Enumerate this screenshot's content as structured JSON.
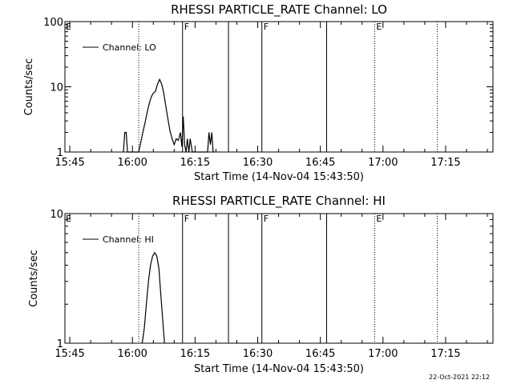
{
  "chart_data": [
    {
      "type": "line",
      "title": "RHESSI PARTICLE_RATE Channel: LO",
      "xlabel": "Start Time (14-Nov-04 15:43:50)",
      "ylabel": "Counts/sec",
      "yscale": "log",
      "ylim": [
        1,
        100
      ],
      "y_ticks": [
        1,
        10,
        100
      ],
      "xlim": [
        "15:43:50",
        "17:26:20"
      ],
      "x_ticks": [
        "15:45",
        "16:00",
        "16:15",
        "16:30",
        "16:45",
        "17:00",
        "17:15"
      ],
      "legend": {
        "placement": "top-left",
        "entries": [
          "Channel: LO"
        ]
      },
      "grid": false,
      "vertical_lines": [
        {
          "time": "16:01:30",
          "style": "dotted",
          "label": ""
        },
        {
          "time": "16:12:00",
          "style": "solid",
          "label": "F"
        },
        {
          "time": "16:23:00",
          "style": "solid",
          "label": ""
        },
        {
          "time": "16:31:00",
          "style": "solid",
          "label": "F"
        },
        {
          "time": "16:46:30",
          "style": "solid",
          "label": ""
        },
        {
          "time": "16:58:00",
          "style": "dotted",
          "label": "E"
        },
        {
          "time": "17:13:00",
          "style": "dotted",
          "label": ""
        }
      ],
      "corner_flag": "E",
      "series": [
        {
          "name": "Channel: LO",
          "x": [
            "15:57:50",
            "15:58:10",
            "15:58:30",
            "15:58:50",
            "16:01:30",
            "16:02:00",
            "16:02:30",
            "16:03:00",
            "16:03:30",
            "16:04:00",
            "16:04:30",
            "16:05:00",
            "16:05:30",
            "16:06:00",
            "16:06:30",
            "16:07:00",
            "16:07:30",
            "16:08:00",
            "16:08:30",
            "16:09:00",
            "16:09:30",
            "16:10:00",
            "16:10:30",
            "16:11:00",
            "16:11:30",
            "16:11:50",
            "16:12:10",
            "16:12:30",
            "16:12:50",
            "16:13:10",
            "16:13:30",
            "16:13:50",
            "16:14:20",
            "16:18:00",
            "16:18:20",
            "16:18:40",
            "16:19:00",
            "16:19:20",
            "16:19:40"
          ],
          "y": [
            1,
            2,
            2,
            1,
            1,
            1.4,
            2,
            2.8,
            4,
            5.5,
            7,
            8,
            8.5,
            11,
            13,
            11,
            8,
            5,
            3.2,
            2.1,
            1.6,
            1.3,
            1.6,
            1.5,
            2,
            1.2,
            3.5,
            1.3,
            1,
            1.6,
            1,
            1.6,
            1,
            1,
            2,
            1.3,
            2,
            1,
            1
          ]
        }
      ]
    },
    {
      "type": "line",
      "title": "RHESSI PARTICLE_RATE Channel: HI",
      "xlabel": "Start Time (14-Nov-04 15:43:50)",
      "ylabel": "Counts/sec",
      "yscale": "log",
      "ylim": [
        1,
        10
      ],
      "y_ticks": [
        1,
        10
      ],
      "xlim": [
        "15:43:50",
        "17:26:20"
      ],
      "x_ticks": [
        "15:45",
        "16:00",
        "16:15",
        "16:30",
        "16:45",
        "17:00",
        "17:15"
      ],
      "legend": {
        "placement": "top-left",
        "entries": [
          "Channel: HI"
        ]
      },
      "grid": false,
      "vertical_lines": [
        {
          "time": "16:01:30",
          "style": "dotted",
          "label": ""
        },
        {
          "time": "16:12:00",
          "style": "solid",
          "label": "F"
        },
        {
          "time": "16:23:00",
          "style": "solid",
          "label": ""
        },
        {
          "time": "16:31:00",
          "style": "solid",
          "label": "F"
        },
        {
          "time": "16:46:30",
          "style": "solid",
          "label": ""
        },
        {
          "time": "16:58:00",
          "style": "dotted",
          "label": "E"
        },
        {
          "time": "17:13:00",
          "style": "dotted",
          "label": ""
        }
      ],
      "corner_flag": "E",
      "series": [
        {
          "name": "Channel: HI",
          "x": [
            "16:02:20",
            "16:02:50",
            "16:03:20",
            "16:03:50",
            "16:04:20",
            "16:04:50",
            "16:05:20",
            "16:05:50",
            "16:06:20",
            "16:06:50",
            "16:07:20",
            "16:07:40"
          ],
          "y": [
            1,
            1.3,
            2,
            3,
            4,
            4.7,
            5,
            4.7,
            3.8,
            2.3,
            1.4,
            1
          ]
        }
      ]
    }
  ],
  "footer": {
    "timestamp": "22-Oct-2021 22:12"
  }
}
